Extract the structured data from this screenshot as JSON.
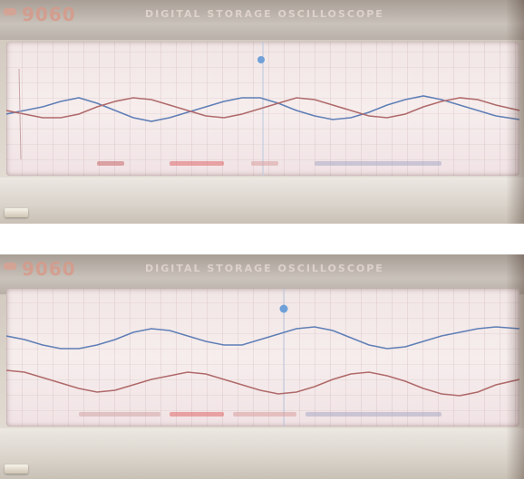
{
  "photos": [
    {
      "model": "9060",
      "title": "DIGITAL STORAGE OSCILLOSCOPE",
      "colors": {
        "trace_1": "#5f7fb6",
        "trace_2": "#b06a6a",
        "trigger": "#6fa0d8"
      }
    },
    {
      "model": "9060",
      "title": "DIGITAL STORAGE OSCILLOSCOPE",
      "colors": {
        "trace_1": "#5f7fb6",
        "trace_2": "#b06a6a",
        "trigger": "#6fa0d8"
      }
    }
  ]
}
